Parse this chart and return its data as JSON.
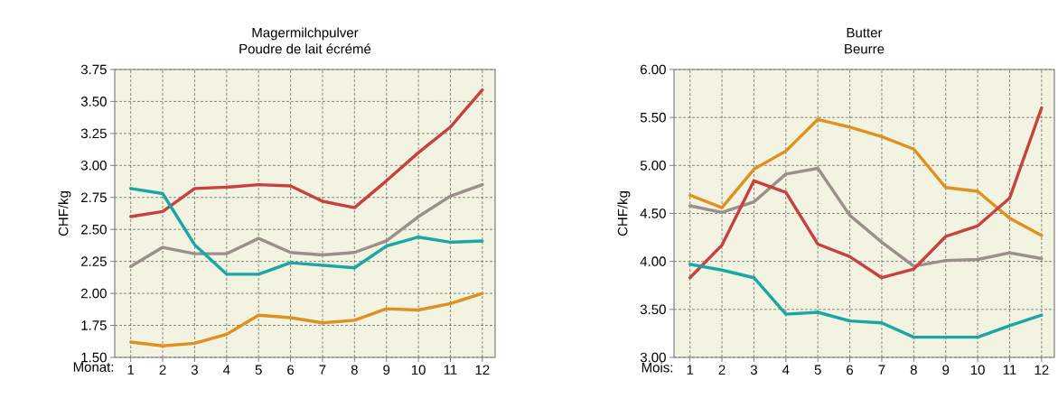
{
  "chart_data": [
    {
      "type": "line",
      "title": "Magermilchpulver",
      "subtitle": "Poudre de lait écrémé",
      "xlabel": "Monat:",
      "ylabel": "CHF/kg",
      "x": [
        1,
        2,
        3,
        4,
        5,
        6,
        7,
        8,
        9,
        10,
        11,
        12
      ],
      "xlim": [
        0.5,
        12.4
      ],
      "xticks": [
        1,
        2,
        3,
        4,
        5,
        6,
        7,
        8,
        9,
        10,
        11,
        12
      ],
      "ylim": [
        1.5,
        3.75
      ],
      "yticks": [
        {
          "value": 1.5,
          "label": "1.50"
        },
        {
          "value": 1.75,
          "label": "1.75"
        },
        {
          "value": 2.0,
          "label": "2.00"
        },
        {
          "value": 2.25,
          "label": "2.25"
        },
        {
          "value": 2.5,
          "label": "2.50"
        },
        {
          "value": 2.75,
          "label": "2.75"
        },
        {
          "value": 3.0,
          "label": "3.00"
        },
        {
          "value": 3.25,
          "label": "3.25"
        },
        {
          "value": 3.5,
          "label": "3.50"
        },
        {
          "value": 3.75,
          "label": "3.75"
        }
      ],
      "grid": true,
      "series": [
        {
          "color": "#c84040",
          "values": [
            2.6,
            2.64,
            2.82,
            2.83,
            2.85,
            2.84,
            2.72,
            2.67,
            2.88,
            3.1,
            3.3,
            3.59
          ]
        },
        {
          "color": "#9a8f8a",
          "values": [
            2.21,
            2.36,
            2.31,
            2.31,
            2.43,
            2.32,
            2.3,
            2.32,
            2.41,
            2.6,
            2.76,
            2.85
          ]
        },
        {
          "color": "#1aa6a6",
          "values": [
            2.82,
            2.78,
            2.38,
            2.15,
            2.15,
            2.24,
            2.22,
            2.2,
            2.37,
            2.44,
            2.4,
            2.41
          ]
        },
        {
          "color": "#e0901e",
          "values": [
            1.62,
            1.59,
            1.61,
            1.68,
            1.83,
            1.81,
            1.77,
            1.79,
            1.88,
            1.87,
            1.92,
            2.0
          ]
        }
      ]
    },
    {
      "type": "line",
      "title": "Butter",
      "subtitle": "Beurre",
      "xlabel": "Mois:",
      "ylabel": "CHF/kg",
      "x": [
        1,
        2,
        3,
        4,
        5,
        6,
        7,
        8,
        9,
        10,
        11,
        12
      ],
      "xlim": [
        0.5,
        12.4
      ],
      "xticks": [
        1,
        2,
        3,
        4,
        5,
        6,
        7,
        8,
        9,
        10,
        11,
        12
      ],
      "ylim": [
        3.0,
        6.0
      ],
      "yticks": [
        {
          "value": 3.0,
          "label": "3.00"
        },
        {
          "value": 3.5,
          "label": "3.50"
        },
        {
          "value": 4.0,
          "label": "4.00"
        },
        {
          "value": 4.5,
          "label": "4.50"
        },
        {
          "value": 5.0,
          "label": "5.00"
        },
        {
          "value": 5.5,
          "label": "5.50"
        },
        {
          "value": 6.0,
          "label": "6.00"
        }
      ],
      "grid": true,
      "series": [
        {
          "color": "#e0901e",
          "values": [
            4.69,
            4.56,
            4.96,
            5.15,
            5.48,
            5.4,
            5.3,
            5.17,
            4.77,
            4.73,
            4.45,
            4.27
          ]
        },
        {
          "color": "#9a8f8a",
          "values": [
            4.58,
            4.51,
            4.62,
            4.91,
            4.97,
            4.48,
            4.2,
            3.95,
            4.01,
            4.02,
            4.09,
            4.03
          ]
        },
        {
          "color": "#c84040",
          "values": [
            3.83,
            4.17,
            4.84,
            4.72,
            4.18,
            4.05,
            3.83,
            3.92,
            4.26,
            4.37,
            4.66,
            5.6
          ]
        },
        {
          "color": "#1aa6a6",
          "values": [
            3.97,
            3.91,
            3.83,
            3.45,
            3.47,
            3.38,
            3.36,
            3.21,
            3.21,
            3.21,
            3.33,
            3.44
          ]
        }
      ]
    }
  ]
}
